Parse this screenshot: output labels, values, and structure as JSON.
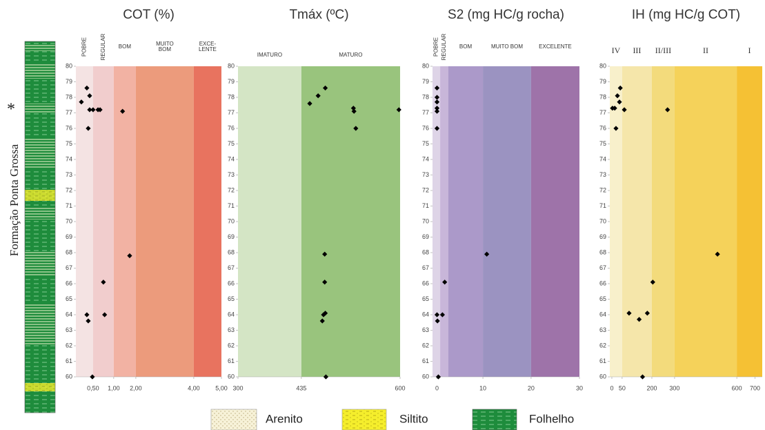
{
  "chart_data": [
    {
      "type": "scatter",
      "title": "COT (%)",
      "zones": [
        {
          "label": "POBRE",
          "bounds": [
            0,
            0.5
          ],
          "color": "#f4e3e3"
        },
        {
          "label": "REGULAR",
          "bounds": [
            0.5,
            1
          ],
          "color": "#f1cdcd"
        },
        {
          "label": "BOM",
          "bounds": [
            1,
            2
          ],
          "color": "#f2b2a3"
        },
        {
          "label": [
            "MUITO",
            "BOM"
          ],
          "bounds": [
            2,
            4
          ],
          "color": "#ec9b7c"
        },
        {
          "label": [
            "EXCE-",
            "LENTE"
          ],
          "bounds": [
            4,
            5
          ],
          "color": "#e8735f"
        }
      ],
      "x": [
        0.32,
        0.4,
        0.16,
        0.4,
        0.5,
        0.62,
        0.67,
        1.4,
        0.36,
        1.72,
        0.75,
        0.78,
        0.32,
        0.36,
        0.48
      ],
      "values": [
        78.6,
        78.1,
        77.7,
        77.2,
        77.2,
        77.2,
        77.2,
        77.1,
        76.0,
        67.8,
        66.1,
        64.0,
        64.0,
        63.6,
        60.0
      ],
      "color": "#000000",
      "xlim": [
        0,
        5
      ],
      "xticks": [
        {
          "value": 0.5,
          "label": "0,50"
        },
        {
          "value": 1,
          "label": "1,00"
        },
        {
          "value": 2,
          "label": "2,00"
        },
        {
          "value": 4,
          "label": "4,00"
        },
        {
          "value": 5,
          "label": "5,00"
        }
      ],
      "ylim": [
        60,
        80
      ],
      "yticks": [
        60,
        61,
        62,
        63,
        64,
        65,
        66,
        67,
        68,
        69,
        70,
        71,
        72,
        73,
        74,
        75,
        76,
        77,
        78,
        79,
        80
      ]
    },
    {
      "type": "scatter",
      "title": "Tmáx (ºC)",
      "zones": [
        {
          "label": "IMATURO",
          "bounds": [
            300,
            435
          ],
          "color": "#d4e5c5"
        },
        {
          "label": "MATURO",
          "bounds": [
            435,
            600
          ],
          "color": "#99c47d"
        }
      ],
      "x": [
        449,
        463,
        475,
        522,
        523,
        526,
        598,
        474,
        474,
        475,
        472,
        470,
        476
      ],
      "values": [
        77.6,
        78.1,
        78.6,
        77.3,
        77.1,
        76.0,
        77.2,
        67.9,
        66.1,
        64.1,
        64.0,
        63.6,
        60.0
      ],
      "color": "#000000",
      "xlim": [
        300,
        600
      ],
      "xticks": [
        300,
        435,
        600
      ],
      "ylim": [
        60,
        80
      ],
      "yticks": [
        60,
        61,
        62,
        63,
        64,
        65,
        66,
        67,
        68,
        69,
        70,
        71,
        72,
        73,
        74,
        75,
        76,
        77,
        78,
        79,
        80
      ]
    },
    {
      "type": "scatter",
      "title": "S2 (mg HC/g rocha)",
      "zones": [
        {
          "label": "POBRE",
          "bounds": [
            -1,
            0.7
          ],
          "color": "#ded4e7"
        },
        {
          "label": "REGULAR",
          "bounds": [
            0.7,
            2.5
          ],
          "color": "#c8b6d9"
        },
        {
          "label": "BOM",
          "bounds": [
            2.5,
            10
          ],
          "color": "#ab99c9"
        },
        {
          "label": "MUITO BOM",
          "bounds": [
            10,
            20
          ],
          "color": "#9b93c1"
        },
        {
          "label": "EXCELENTE",
          "bounds": [
            20,
            30
          ],
          "color": "#9e73a9"
        }
      ],
      "x": [
        0,
        0,
        0,
        0,
        0,
        0,
        10.8,
        1.7,
        0,
        1.2,
        0.1,
        0.3
      ],
      "values": [
        78.6,
        78.0,
        77.7,
        77.3,
        77.1,
        76.0,
        67.9,
        66.1,
        64.0,
        64.0,
        63.6,
        60.0
      ],
      "color": "#000000",
      "xlim": [
        -1,
        30
      ],
      "xticks": [
        0,
        10,
        20,
        30
      ],
      "ylim": [
        60,
        80
      ],
      "yticks": [
        60,
        61,
        62,
        63,
        64,
        65,
        66,
        67,
        68,
        69,
        70,
        71,
        72,
        73,
        74,
        75,
        76,
        77,
        78,
        79,
        80
      ]
    },
    {
      "type": "scatter",
      "title": "IH (mg HC/g COT)",
      "zones": [
        {
          "label": "IV",
          "bounds": [
            -10,
            50
          ],
          "color": "#f8f0cb"
        },
        {
          "label": "III",
          "bounds": [
            50,
            200
          ],
          "color": "#f5e6aa"
        },
        {
          "label": "II/III",
          "bounds": [
            200,
            300
          ],
          "color": "#f3db7c"
        },
        {
          "label": "II",
          "bounds": [
            300,
            600
          ],
          "color": "#f5d25a"
        },
        {
          "label": "I",
          "bounds": [
            600,
            740
          ],
          "color": "#f5c134"
        }
      ],
      "x": [
        41,
        27,
        37,
        14,
        3,
        61,
        269,
        20,
        507,
        204,
        85,
        177,
        136,
        153
      ],
      "values": [
        78.6,
        78.1,
        77.7,
        77.3,
        77.3,
        77.2,
        77.2,
        76.0,
        67.9,
        66.1,
        64.1,
        64.1,
        63.7,
        60.0
      ],
      "color": "#000000",
      "xlim": [
        -10,
        740
      ],
      "xticks": [
        0,
        50,
        200,
        300,
        600,
        700
      ],
      "ylim": [
        60,
        80
      ],
      "yticks": [
        60,
        61,
        62,
        63,
        64,
        65,
        66,
        67,
        68,
        69,
        70,
        71,
        72,
        73,
        74,
        75,
        76,
        77,
        78,
        79,
        80
      ]
    }
  ],
  "side_label": "Formação Ponta Grossa",
  "side_mark": "*",
  "legend": [
    "Arenito",
    "Siltito",
    "Folhelho"
  ]
}
